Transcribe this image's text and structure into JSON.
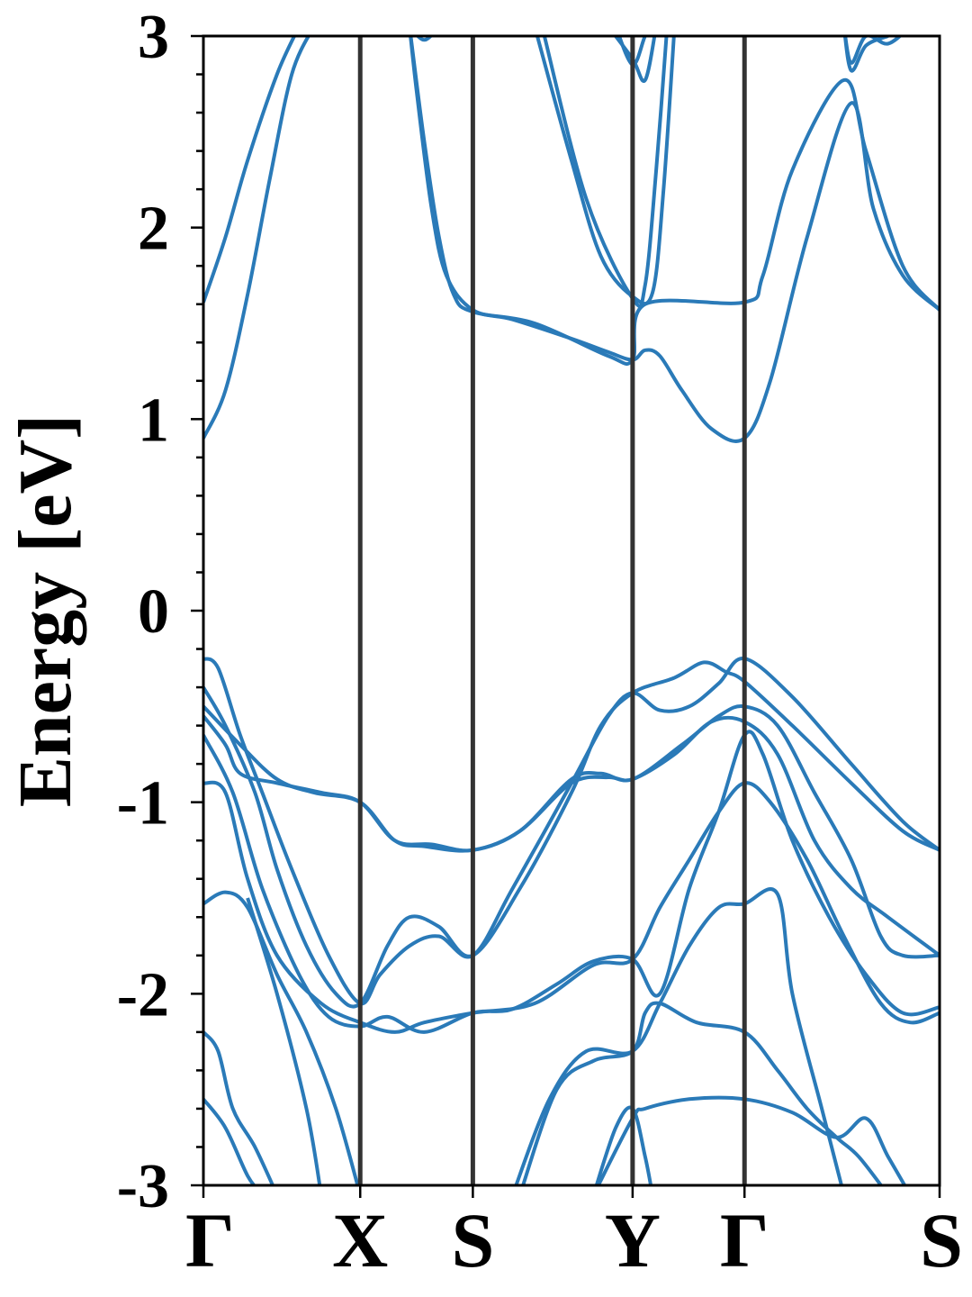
{
  "chart_data": {
    "type": "line",
    "title": "",
    "xlabel": "",
    "ylabel": "Energy [eV]",
    "ylim": [
      -3,
      3
    ],
    "yticks": [
      {
        "value": 3,
        "label": "3"
      },
      {
        "value": 2,
        "label": "2"
      },
      {
        "value": 1,
        "label": "1"
      },
      {
        "value": 0,
        "label": "0"
      },
      {
        "value": -1,
        "label": "-1"
      },
      {
        "value": -2,
        "label": "-2"
      },
      {
        "value": -3,
        "label": "-3"
      }
    ],
    "xlim": [
      0,
      1
    ],
    "kpoints": [
      {
        "label": "Γ",
        "x": 0.0
      },
      {
        "label": "X",
        "x": 0.213
      },
      {
        "label": "S",
        "x": 0.366
      },
      {
        "label": "Y",
        "x": 0.583
      },
      {
        "label": "Γ",
        "x": 0.735
      },
      {
        "label": "S",
        "x": 1.0
      }
    ],
    "grid": false,
    "line_color": "#2a7ab8",
    "divider_color": "#333333",
    "series": [
      {
        "points": [
          [
            0,
            1.61
          ],
          [
            0.03,
            1.95
          ],
          [
            0.06,
            2.35
          ],
          [
            0.1,
            2.8
          ],
          [
            0.13,
            3.05
          ]
        ]
      },
      {
        "points": [
          [
            0,
            0.9
          ],
          [
            0.03,
            1.15
          ],
          [
            0.06,
            1.65
          ],
          [
            0.09,
            2.25
          ],
          [
            0.12,
            2.8
          ],
          [
            0.15,
            3.05
          ]
        ]
      },
      {
        "points": [
          [
            0.28,
            3.05
          ],
          [
            0.29,
            2.7
          ],
          [
            0.31,
            2.1
          ],
          [
            0.33,
            1.75
          ],
          [
            0.366,
            1.57
          ],
          [
            0.42,
            1.52
          ],
          [
            0.5,
            1.42
          ],
          [
            0.55,
            1.35
          ],
          [
            0.583,
            1.31
          ],
          [
            0.6,
            1.36
          ],
          [
            0.62,
            1.33
          ],
          [
            0.65,
            1.15
          ],
          [
            0.69,
            0.95
          ],
          [
            0.735,
            0.9
          ],
          [
            0.77,
            1.2
          ],
          [
            0.82,
            1.95
          ],
          [
            0.88,
            2.65
          ],
          [
            0.91,
            2.1
          ],
          [
            0.95,
            1.75
          ],
          [
            1.0,
            1.57
          ]
        ]
      },
      {
        "points": [
          [
            0.28,
            3.05
          ],
          [
            0.3,
            2.45
          ],
          [
            0.32,
            1.95
          ],
          [
            0.34,
            1.65
          ],
          [
            0.366,
            1.56
          ],
          [
            0.45,
            1.5
          ],
          [
            0.55,
            1.33
          ],
          [
            0.583,
            1.31
          ],
          [
            0.6,
            1.6
          ],
          [
            0.735,
            1.61
          ],
          [
            0.76,
            1.75
          ],
          [
            0.8,
            2.3
          ],
          [
            0.87,
            2.77
          ],
          [
            0.9,
            2.4
          ],
          [
            0.95,
            1.8
          ],
          [
            1.0,
            1.57
          ]
        ]
      },
      {
        "points": [
          [
            0.45,
            3.05
          ],
          [
            0.5,
            2.35
          ],
          [
            0.54,
            1.85
          ],
          [
            0.583,
            1.64
          ],
          [
            0.61,
            1.66
          ],
          [
            0.625,
            2.2
          ],
          [
            0.64,
            3.05
          ]
        ]
      },
      {
        "points": [
          [
            0.46,
            3.05
          ],
          [
            0.52,
            2.15
          ],
          [
            0.583,
            1.63
          ],
          [
            0.6,
            1.7
          ],
          [
            0.615,
            2.3
          ],
          [
            0.63,
            3.05
          ]
        ]
      },
      {
        "points": [
          [
            0.55,
            3.05
          ],
          [
            0.583,
            2.88
          ],
          [
            0.6,
            2.77
          ],
          [
            0.615,
            3.05
          ]
        ]
      },
      {
        "points": [
          [
            0.56,
            3.05
          ],
          [
            0.583,
            2.85
          ],
          [
            0.6,
            3.0
          ],
          [
            0.61,
            3.05
          ]
        ]
      },
      {
        "points": [
          [
            0.87,
            3.05
          ],
          [
            0.88,
            2.86
          ],
          [
            0.9,
            3.0
          ],
          [
            0.93,
            2.96
          ],
          [
            0.96,
            3.05
          ]
        ]
      },
      {
        "points": [
          [
            0.87,
            3.05
          ],
          [
            0.88,
            2.82
          ],
          [
            0.9,
            2.95
          ],
          [
            0.93,
            3.0
          ]
        ]
      },
      {
        "points": [
          [
            0.28,
            3.05
          ],
          [
            0.3,
            2.98
          ],
          [
            0.32,
            3.05
          ]
        ]
      },
      {
        "points": [
          [
            0,
            -0.25
          ],
          [
            0.02,
            -0.3
          ],
          [
            0.05,
            -0.65
          ],
          [
            0.08,
            -0.95
          ],
          [
            0.12,
            -1.35
          ],
          [
            0.17,
            -1.8
          ],
          [
            0.213,
            -2.05
          ],
          [
            0.24,
            -1.9
          ],
          [
            0.28,
            -1.75
          ],
          [
            0.32,
            -1.7
          ],
          [
            0.366,
            -1.8
          ],
          [
            0.42,
            -1.45
          ],
          [
            0.5,
            -0.9
          ],
          [
            0.55,
            -0.55
          ],
          [
            0.583,
            -0.43
          ],
          [
            0.62,
            -0.52
          ],
          [
            0.66,
            -0.5
          ],
          [
            0.7,
            -0.38
          ],
          [
            0.735,
            -0.25
          ],
          [
            0.8,
            -0.45
          ],
          [
            0.88,
            -0.8
          ],
          [
            0.95,
            -1.1
          ],
          [
            1.0,
            -1.25
          ]
        ]
      },
      {
        "points": [
          [
            0,
            -0.4
          ],
          [
            0.03,
            -0.6
          ],
          [
            0.07,
            -0.95
          ],
          [
            0.1,
            -1.35
          ],
          [
            0.14,
            -1.75
          ],
          [
            0.18,
            -2.0
          ],
          [
            0.213,
            -2.05
          ],
          [
            0.25,
            -1.75
          ],
          [
            0.28,
            -1.6
          ],
          [
            0.32,
            -1.65
          ],
          [
            0.366,
            -1.8
          ],
          [
            0.43,
            -1.45
          ],
          [
            0.5,
            -0.95
          ],
          [
            0.54,
            -0.6
          ],
          [
            0.583,
            -0.43
          ],
          [
            0.64,
            -0.35
          ],
          [
            0.68,
            -0.27
          ],
          [
            0.71,
            -0.32
          ],
          [
            0.735,
            -0.37
          ],
          [
            0.8,
            -0.6
          ],
          [
            0.88,
            -0.9
          ],
          [
            0.95,
            -1.15
          ],
          [
            1.0,
            -1.25
          ]
        ]
      },
      {
        "points": [
          [
            0,
            -0.5
          ],
          [
            0.05,
            -0.7
          ],
          [
            0.1,
            -0.88
          ],
          [
            0.15,
            -0.95
          ],
          [
            0.213,
            -1.0
          ],
          [
            0.26,
            -1.2
          ],
          [
            0.3,
            -1.23
          ],
          [
            0.366,
            -1.25
          ],
          [
            0.43,
            -1.15
          ],
          [
            0.5,
            -0.9
          ],
          [
            0.55,
            -0.87
          ],
          [
            0.583,
            -0.88
          ],
          [
            0.64,
            -0.75
          ],
          [
            0.69,
            -0.58
          ],
          [
            0.735,
            -0.58
          ],
          [
            0.78,
            -0.75
          ],
          [
            0.83,
            -1.2
          ],
          [
            0.88,
            -1.45
          ],
          [
            0.93,
            -1.6
          ],
          [
            1.0,
            -1.8
          ]
        ]
      },
      {
        "points": [
          [
            0,
            -0.55
          ],
          [
            0.03,
            -0.7
          ],
          [
            0.05,
            -0.85
          ],
          [
            0.1,
            -0.9
          ],
          [
            0.16,
            -0.95
          ],
          [
            0.213,
            -1.0
          ],
          [
            0.26,
            -1.2
          ],
          [
            0.31,
            -1.22
          ],
          [
            0.366,
            -1.25
          ],
          [
            0.43,
            -1.15
          ],
          [
            0.5,
            -0.88
          ],
          [
            0.54,
            -0.85
          ],
          [
            0.583,
            -0.88
          ],
          [
            0.65,
            -0.7
          ],
          [
            0.7,
            -0.55
          ],
          [
            0.735,
            -0.5
          ],
          [
            0.78,
            -0.6
          ],
          [
            0.83,
            -0.95
          ],
          [
            0.88,
            -1.3
          ],
          [
            0.92,
            -1.7
          ],
          [
            0.95,
            -1.8
          ],
          [
            1.0,
            -1.8
          ]
        ]
      },
      {
        "points": [
          [
            0,
            -0.65
          ],
          [
            0.04,
            -0.95
          ],
          [
            0.08,
            -1.45
          ],
          [
            0.13,
            -1.9
          ],
          [
            0.17,
            -2.12
          ],
          [
            0.213,
            -2.17
          ],
          [
            0.25,
            -2.12
          ],
          [
            0.3,
            -2.2
          ],
          [
            0.366,
            -2.1
          ],
          [
            0.42,
            -2.08
          ],
          [
            0.48,
            -1.95
          ],
          [
            0.53,
            -1.83
          ],
          [
            0.583,
            -1.82
          ],
          [
            0.62,
            -2.0
          ],
          [
            0.66,
            -1.45
          ],
          [
            0.7,
            -1.05
          ],
          [
            0.735,
            -0.65
          ],
          [
            0.76,
            -0.75
          ],
          [
            0.8,
            -1.2
          ],
          [
            0.85,
            -1.6
          ],
          [
            0.9,
            -1.9
          ],
          [
            0.95,
            -2.1
          ],
          [
            1.0,
            -2.07
          ]
        ]
      },
      {
        "points": [
          [
            0,
            -0.9
          ],
          [
            0.03,
            -0.95
          ],
          [
            0.06,
            -1.4
          ],
          [
            0.1,
            -1.8
          ],
          [
            0.16,
            -2.05
          ],
          [
            0.213,
            -2.15
          ],
          [
            0.26,
            -2.2
          ],
          [
            0.3,
            -2.15
          ],
          [
            0.366,
            -2.1
          ],
          [
            0.45,
            -2.05
          ],
          [
            0.53,
            -1.85
          ],
          [
            0.583,
            -1.82
          ],
          [
            0.62,
            -1.55
          ],
          [
            0.66,
            -1.3
          ],
          [
            0.7,
            -1.05
          ],
          [
            0.735,
            -0.9
          ],
          [
            0.77,
            -1.0
          ],
          [
            0.82,
            -1.3
          ],
          [
            0.87,
            -1.7
          ],
          [
            0.92,
            -2.05
          ],
          [
            0.96,
            -2.15
          ],
          [
            1.0,
            -2.1
          ]
        ]
      },
      {
        "points": [
          [
            0,
            -1.53
          ],
          [
            0.03,
            -1.47
          ],
          [
            0.06,
            -1.55
          ],
          [
            0.1,
            -1.9
          ],
          [
            0.14,
            -2.2
          ],
          [
            0.18,
            -2.6
          ],
          [
            0.213,
            -3.05
          ]
        ]
      },
      {
        "points": [
          [
            0,
            -2.2
          ],
          [
            0.02,
            -2.3
          ],
          [
            0.04,
            -2.6
          ],
          [
            0.07,
            -2.8
          ],
          [
            0.1,
            -3.05
          ]
        ]
      },
      {
        "points": [
          [
            0,
            -2.55
          ],
          [
            0.03,
            -2.7
          ],
          [
            0.06,
            -2.95
          ],
          [
            0.08,
            -3.05
          ]
        ]
      },
      {
        "points": [
          [
            0.06,
            -1.5
          ],
          [
            0.1,
            -2.0
          ],
          [
            0.14,
            -2.6
          ],
          [
            0.16,
            -3.05
          ]
        ]
      },
      {
        "points": [
          [
            0.42,
            -3.05
          ],
          [
            0.47,
            -2.55
          ],
          [
            0.52,
            -2.3
          ],
          [
            0.583,
            -2.3
          ],
          [
            0.62,
            -2.05
          ],
          [
            0.66,
            -1.75
          ],
          [
            0.7,
            -1.55
          ],
          [
            0.735,
            -1.53
          ],
          [
            0.78,
            -1.48
          ],
          [
            0.8,
            -2.0
          ],
          [
            0.84,
            -2.6
          ],
          [
            0.87,
            -3.05
          ]
        ]
      },
      {
        "points": [
          [
            0.43,
            -3.05
          ],
          [
            0.48,
            -2.5
          ],
          [
            0.53,
            -2.35
          ],
          [
            0.583,
            -2.3
          ],
          [
            0.6,
            -2.1
          ],
          [
            0.62,
            -2.05
          ],
          [
            0.67,
            -2.15
          ],
          [
            0.735,
            -2.2
          ],
          [
            0.78,
            -2.4
          ],
          [
            0.82,
            -2.6
          ],
          [
            0.86,
            -2.75
          ],
          [
            0.89,
            -2.85
          ],
          [
            0.93,
            -3.05
          ]
        ]
      },
      {
        "points": [
          [
            0.53,
            -3.05
          ],
          [
            0.56,
            -2.7
          ],
          [
            0.583,
            -2.6
          ],
          [
            0.6,
            -2.85
          ],
          [
            0.61,
            -3.05
          ]
        ]
      },
      {
        "points": [
          [
            0.53,
            -3.05
          ],
          [
            0.583,
            -2.65
          ],
          [
            0.6,
            -2.6
          ],
          [
            0.66,
            -2.55
          ],
          [
            0.735,
            -2.55
          ],
          [
            0.8,
            -2.62
          ],
          [
            0.86,
            -2.75
          ],
          [
            0.9,
            -2.65
          ],
          [
            0.93,
            -2.85
          ],
          [
            0.96,
            -3.05
          ]
        ]
      }
    ]
  }
}
